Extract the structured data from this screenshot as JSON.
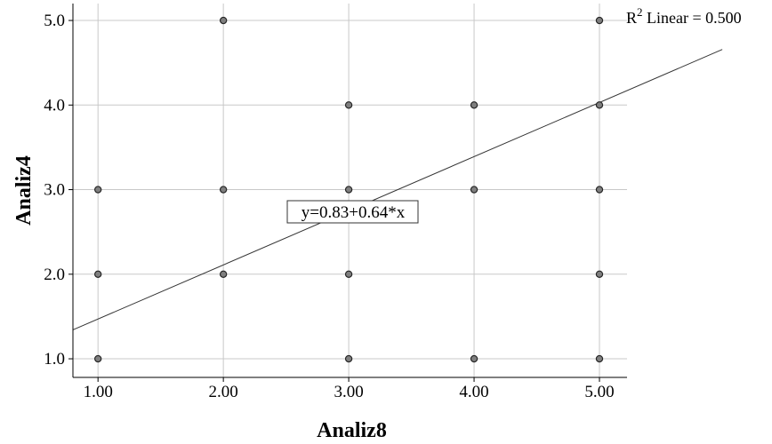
{
  "chart_data": {
    "type": "scatter",
    "xlabel": "Analiz8",
    "ylabel": "Analiz4",
    "xlim": [
      0.8,
      5.22
    ],
    "ylim": [
      0.78,
      5.2
    ],
    "x_ticks": [
      "1.00",
      "2.00",
      "3.00",
      "4.00",
      "5.00"
    ],
    "y_ticks": [
      "1.0",
      "2.0",
      "3.0",
      "4.0",
      "5.0"
    ],
    "grid": true,
    "points": [
      {
        "x": 1,
        "y": 1
      },
      {
        "x": 1,
        "y": 2
      },
      {
        "x": 1,
        "y": 3
      },
      {
        "x": 2,
        "y": 2
      },
      {
        "x": 2,
        "y": 3
      },
      {
        "x": 2,
        "y": 5
      },
      {
        "x": 3,
        "y": 1
      },
      {
        "x": 3,
        "y": 2
      },
      {
        "x": 3,
        "y": 3
      },
      {
        "x": 3,
        "y": 4
      },
      {
        "x": 4,
        "y": 1
      },
      {
        "x": 4,
        "y": 3
      },
      {
        "x": 4,
        "y": 4
      },
      {
        "x": 5,
        "y": 1
      },
      {
        "x": 5,
        "y": 2
      },
      {
        "x": 5,
        "y": 3
      },
      {
        "x": 5,
        "y": 4
      },
      {
        "x": 5,
        "y": 5
      }
    ],
    "fit_line": {
      "intercept": 0.83,
      "slope": 0.64,
      "label": "y=0.83+0.64*x"
    },
    "r2_label": {
      "prefix": "R",
      "sup": "2",
      "suffix": " Linear = 0.500"
    }
  }
}
